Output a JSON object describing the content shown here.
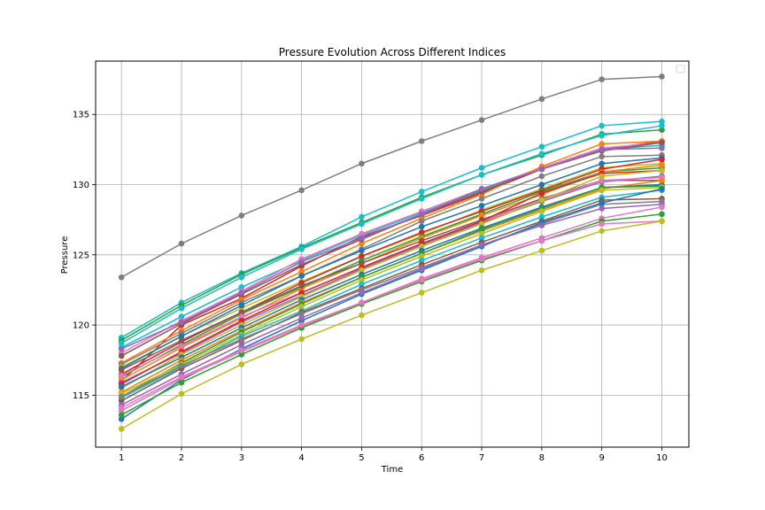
{
  "chart_data": {
    "type": "line",
    "title": "Pressure Evolution Across Different Indices",
    "xlabel": "Time",
    "ylabel": "Pressure",
    "x": [
      1,
      2,
      3,
      4,
      5,
      6,
      7,
      8,
      9,
      10
    ],
    "xlim": [
      0.57,
      10.45
    ],
    "ylim": [
      111.3,
      138.8
    ],
    "xticks": [
      "1",
      "2",
      "3",
      "4",
      "5",
      "6",
      "7",
      "8",
      "9",
      "10"
    ],
    "yticks": [
      "115",
      "120",
      "125",
      "130",
      "135"
    ],
    "grid": true,
    "legend": {
      "placement": "top-right",
      "entries": []
    },
    "series": [
      {
        "color": "#7f7f7f",
        "values": [
          123.4,
          125.8,
          127.8,
          129.6,
          131.5,
          133.1,
          134.6,
          136.1,
          137.5,
          137.7
        ]
      },
      {
        "color": "#17becf",
        "values": [
          119.1,
          121.6,
          123.7,
          125.6,
          127.7,
          129.5,
          131.2,
          132.7,
          134.2,
          134.5
        ]
      },
      {
        "color": "#2ca02c",
        "values": [
          118.9,
          121.4,
          123.6,
          125.5,
          127.3,
          129.1,
          130.7,
          132.1,
          133.6,
          133.9
        ]
      },
      {
        "color": "#17becf",
        "values": [
          118.7,
          121.2,
          123.4,
          125.4,
          127.2,
          129.0,
          130.7,
          132.2,
          133.5,
          134.2
        ]
      },
      {
        "color": "#d62728",
        "values": [
          116.0,
          120.0,
          121.9,
          124.2,
          126.3,
          127.8,
          129.4,
          131.1,
          132.5,
          133.1
        ]
      },
      {
        "color": "#17becf",
        "values": [
          118.4,
          120.6,
          122.7,
          124.6,
          126.4,
          128.0,
          129.6,
          131.1,
          132.5,
          132.8
        ]
      },
      {
        "color": "#e377c2",
        "values": [
          118.0,
          120.3,
          122.4,
          124.7,
          126.5,
          128.1,
          129.7,
          131.2,
          132.6,
          133.0
        ]
      },
      {
        "color": "#ff7f0e",
        "values": [
          117.3,
          119.6,
          121.8,
          123.8,
          125.8,
          127.6,
          129.3,
          131.3,
          132.9,
          133.1
        ]
      },
      {
        "color": "#8c564b",
        "values": [
          117.8,
          120.1,
          122.2,
          124.3,
          126.1,
          127.9,
          129.5,
          131.1,
          132.4,
          133.0
        ]
      },
      {
        "color": "#9467bd",
        "values": [
          118.3,
          120.2,
          122.3,
          124.5,
          126.2,
          127.9,
          129.7,
          131.1,
          132.5,
          132.6
        ]
      },
      {
        "color": "#7f7f7f",
        "values": [
          117.2,
          119.4,
          121.6,
          123.5,
          125.4,
          127.4,
          129.0,
          130.6,
          132.0,
          132.1
        ]
      },
      {
        "color": "#bcbd22",
        "values": [
          117.0,
          119.2,
          121.2,
          123.1,
          124.9,
          126.5,
          128.2,
          129.7,
          131.2,
          131.5
        ]
      },
      {
        "color": "#1f77b4",
        "values": [
          116.9,
          119.2,
          121.4,
          123.5,
          125.3,
          127.0,
          128.5,
          130.0,
          131.5,
          131.9
        ]
      },
      {
        "color": "#d62728",
        "values": [
          116.5,
          118.8,
          120.9,
          123.0,
          124.9,
          126.6,
          128.1,
          129.6,
          131.1,
          131.8
        ]
      },
      {
        "color": "#2ca02c",
        "values": [
          116.3,
          118.6,
          120.8,
          122.7,
          124.6,
          126.3,
          127.9,
          129.5,
          130.9,
          131.2
        ]
      },
      {
        "color": "#ff7f0e",
        "values": [
          116.1,
          118.4,
          120.5,
          122.6,
          124.4,
          126.2,
          127.8,
          129.3,
          130.9,
          131.4
        ]
      },
      {
        "color": "#8c564b",
        "values": [
          116.8,
          118.9,
          120.9,
          122.8,
          124.4,
          126.0,
          127.5,
          129.0,
          130.3,
          130.3
        ]
      },
      {
        "color": "#9467bd",
        "values": [
          115.9,
          118.0,
          120.2,
          122.1,
          124.0,
          125.7,
          127.3,
          128.8,
          130.2,
          130.6
        ]
      },
      {
        "color": "#e377c2",
        "values": [
          116.4,
          118.5,
          120.6,
          122.3,
          124.1,
          125.8,
          127.4,
          128.9,
          130.3,
          130.5
        ]
      },
      {
        "color": "#d62728",
        "values": [
          115.8,
          118.1,
          120.3,
          122.3,
          124.1,
          125.8,
          127.4,
          129.4,
          130.8,
          131.0
        ]
      },
      {
        "color": "#bcbd22",
        "values": [
          115.5,
          117.9,
          120.0,
          122.0,
          123.9,
          125.6,
          127.2,
          128.9,
          130.6,
          131.0
        ]
      },
      {
        "color": "#1f77b4",
        "values": [
          115.6,
          117.7,
          119.8,
          121.8,
          123.6,
          125.3,
          126.9,
          128.4,
          129.8,
          130.0
        ]
      },
      {
        "color": "#ff7f0e",
        "values": [
          115.2,
          117.5,
          119.6,
          121.6,
          123.4,
          125.1,
          126.7,
          128.2,
          129.7,
          130.3
        ]
      },
      {
        "color": "#2ca02c",
        "values": [
          114.9,
          117.3,
          119.5,
          121.5,
          123.4,
          125.1,
          126.8,
          128.3,
          129.8,
          129.9
        ]
      },
      {
        "color": "#bcbd22",
        "values": [
          115.1,
          117.2,
          119.3,
          121.3,
          123.2,
          124.9,
          126.5,
          128.1,
          129.6,
          129.8
        ]
      },
      {
        "color": "#17becf",
        "values": [
          114.8,
          117.0,
          119.2,
          121.0,
          122.9,
          124.6,
          126.2,
          127.7,
          129.1,
          129.6
        ]
      },
      {
        "color": "#8c564b",
        "values": [
          114.6,
          116.9,
          118.9,
          120.9,
          122.6,
          124.3,
          125.9,
          127.4,
          128.9,
          129.0
        ]
      },
      {
        "color": "#7f7f7f",
        "values": [
          114.9,
          117.1,
          119.0,
          120.8,
          122.5,
          124.1,
          125.7,
          127.2,
          128.6,
          128.8
        ]
      },
      {
        "color": "#1f77b4",
        "values": [
          113.3,
          116.1,
          118.3,
          120.3,
          122.2,
          123.9,
          125.6,
          127.3,
          128.7,
          129.7
        ]
      },
      {
        "color": "#9467bd",
        "values": [
          114.3,
          116.5,
          118.6,
          120.5,
          122.3,
          124.0,
          125.7,
          127.1,
          128.3,
          128.6
        ]
      },
      {
        "color": "#e377c2",
        "values": [
          113.9,
          116.2,
          118.1,
          119.9,
          121.6,
          123.3,
          124.8,
          126.2,
          127.6,
          128.4
        ]
      },
      {
        "color": "#2ca02c",
        "values": [
          113.6,
          115.9,
          117.9,
          119.8,
          121.5,
          123.1,
          124.6,
          126.0,
          127.4,
          127.9
        ]
      },
      {
        "color": "#e377c2",
        "values": [
          114.1,
          116.3,
          118.2,
          120.0,
          121.6,
          123.2,
          124.7,
          126.0,
          127.2,
          127.4
        ]
      },
      {
        "color": "#bcbd22",
        "values": [
          112.6,
          115.1,
          117.2,
          119.0,
          120.7,
          122.3,
          123.9,
          125.3,
          126.7,
          127.4
        ]
      }
    ]
  }
}
